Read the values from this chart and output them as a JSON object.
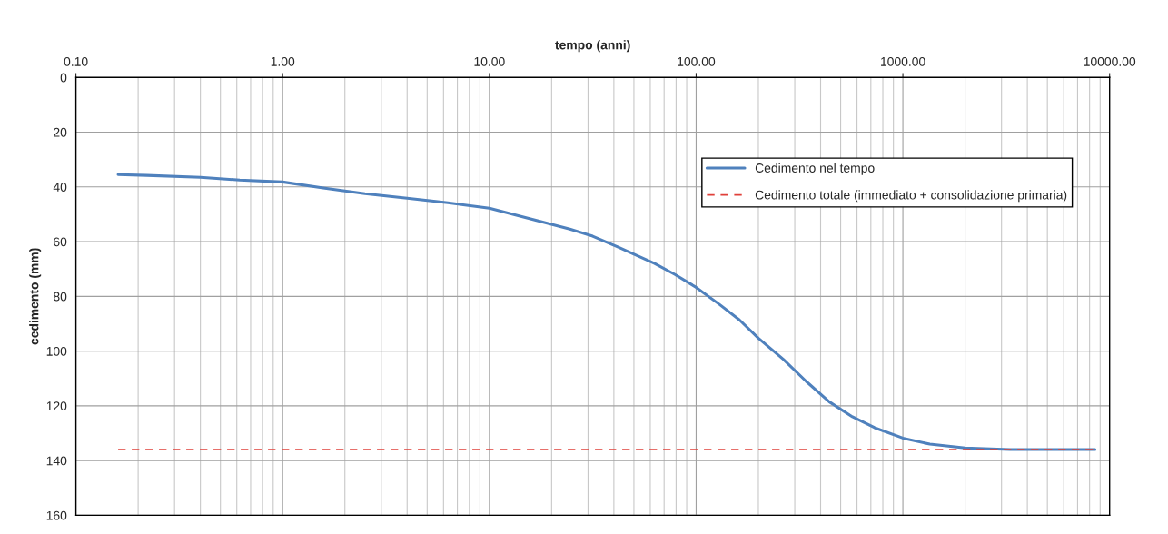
{
  "chart_data": {
    "type": "line",
    "xlabel": "tempo (anni)",
    "ylabel": "cedimento (mm)",
    "log": "x",
    "xlim": [
      0.1,
      10000
    ],
    "xticks": [
      {
        "value": 0.1,
        "label": "0.10"
      },
      {
        "value": 1,
        "label": "1.00"
      },
      {
        "value": 10,
        "label": "10.00"
      },
      {
        "value": 100,
        "label": "100.00"
      },
      {
        "value": 1000,
        "label": "1000.00"
      },
      {
        "value": 10000,
        "label": "10000.00"
      }
    ],
    "ylim": [
      160,
      0
    ],
    "yticks": [
      0,
      20,
      40,
      60,
      80,
      100,
      120,
      140,
      160
    ],
    "grid": true,
    "legend": "top right",
    "marker": "none",
    "series": [
      {
        "name": "Cedimento nel tempo",
        "color": "#4f81bd",
        "line_style": "solid",
        "x": [
          0.16,
          0.22,
          0.4,
          0.62,
          1.0,
          1.6,
          2.5,
          4,
          6.3,
          10,
          15.5,
          24.5,
          31.6,
          42,
          63,
          79,
          100,
          130,
          162,
          200,
          264,
          340,
          440,
          570,
          730,
          1000,
          1350,
          2000,
          3300,
          8500
        ],
        "values": [
          35.5,
          35.8,
          36.5,
          37.5,
          38.2,
          40.5,
          42.5,
          44.1,
          45.8,
          47.8,
          51.5,
          55.4,
          58,
          62,
          68,
          72,
          76.7,
          83,
          88.6,
          95.3,
          103,
          111,
          118.5,
          124,
          128,
          131.8,
          134,
          135.4,
          136,
          136
        ]
      },
      {
        "name": "Cedimento totale (immediato + consolidazione primaria)",
        "color": "#e0403a",
        "line_style": "dashed",
        "x": [
          0.16,
          8500
        ],
        "values": [
          136,
          136
        ]
      }
    ]
  }
}
